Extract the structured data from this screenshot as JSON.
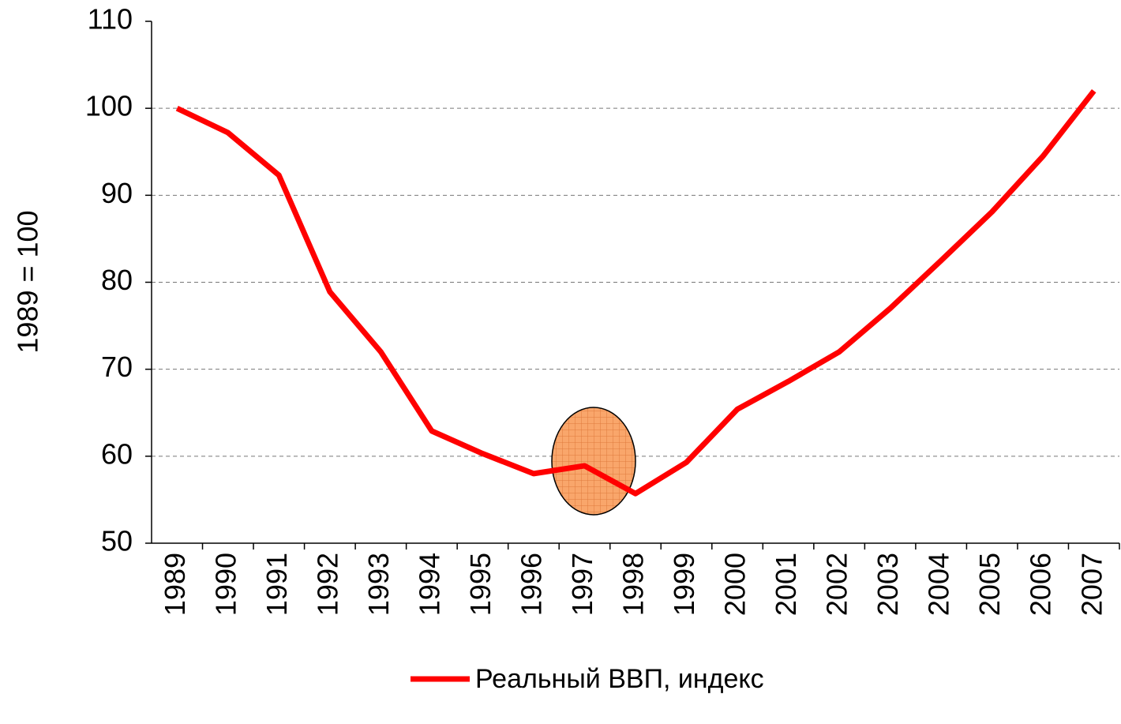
{
  "chart_data": {
    "type": "line",
    "y_label": "1989 = 100",
    "categories": [
      "1989",
      "1990",
      "1991",
      "1992",
      "1993",
      "1994",
      "1995",
      "1996",
      "1997",
      "1998",
      "1999",
      "2000",
      "2001",
      "2002",
      "2003",
      "2004",
      "2005",
      "2006",
      "2007"
    ],
    "series": [
      {
        "name": "Реальный ВВП, индекс",
        "color": "#ff0000",
        "values": [
          100,
          97.2,
          92.3,
          78.9,
          72,
          62.9,
          60.3,
          58,
          58.9,
          55.7,
          59.3,
          65.4,
          68.6,
          72,
          77,
          82.5,
          88.1,
          94.5,
          102
        ]
      }
    ],
    "ylim": [
      50,
      110
    ],
    "yticks": [
      50,
      60,
      70,
      80,
      90,
      100,
      110
    ],
    "grid": true,
    "legend": "bottom"
  }
}
